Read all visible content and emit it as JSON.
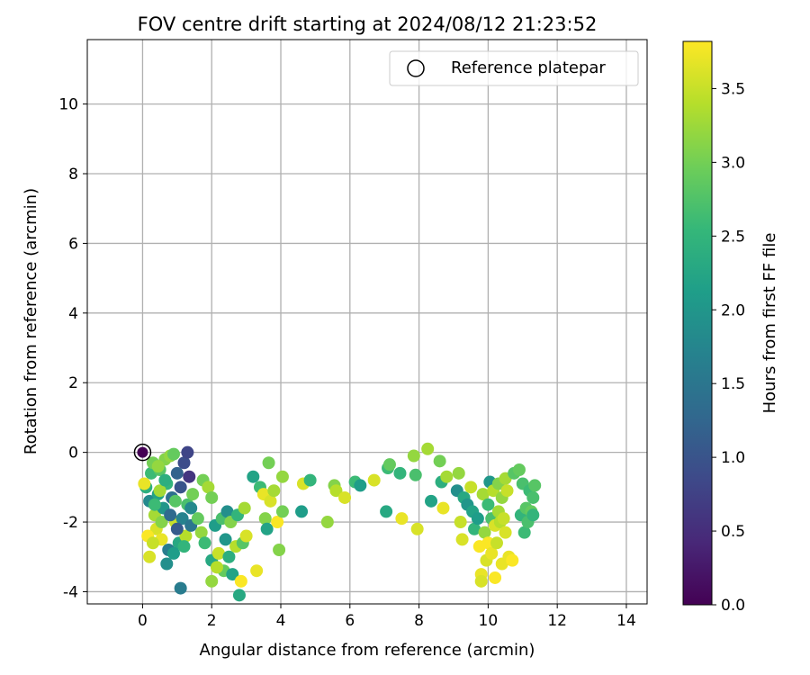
{
  "chart_data": {
    "type": "scatter",
    "title": "FOV centre drift starting at 2024/08/12 21:23:52",
    "xlabel": "Angular distance from reference (arcmin)",
    "ylabel": "Rotation from reference (arcmin)",
    "xlim": [
      -1.6,
      14.6
    ],
    "ylim": [
      -4.35,
      11.85
    ],
    "xticks": [
      "0",
      "2",
      "4",
      "6",
      "8",
      "10",
      "12",
      "14"
    ],
    "yticks": [
      "-4",
      "-2",
      "0",
      "2",
      "4",
      "6",
      "8",
      "10"
    ],
    "grid": true,
    "legend": {
      "position": "top-right",
      "entries": [
        "Reference platepar"
      ]
    },
    "colorbar": {
      "label": "Hours from first FF file",
      "range": [
        0.0,
        3.82
      ],
      "ticks": [
        "0.0",
        "0.5",
        "1.0",
        "1.5",
        "2.0",
        "2.5",
        "3.0",
        "3.5"
      ],
      "colormap": "viridis",
      "colors": [
        "#440154",
        "#482878",
        "#3e4989",
        "#31688e",
        "#26828e",
        "#1f9e89",
        "#35b779",
        "#6ece58",
        "#b5de2b",
        "#fde725"
      ]
    },
    "reference_point": {
      "x": 0,
      "y": 0,
      "hours": 0.0
    },
    "series": [
      {
        "points": [
          {
            "x": 0.1,
            "y": -1.0,
            "c": 2.4
          },
          {
            "x": 0.2,
            "y": -1.4,
            "c": 1.8
          },
          {
            "x": 0.25,
            "y": -0.6,
            "c": 2.6
          },
          {
            "x": 0.3,
            "y": -0.3,
            "c": 3.0
          },
          {
            "x": 0.35,
            "y": -1.8,
            "c": 3.3
          },
          {
            "x": 0.4,
            "y": -2.2,
            "c": 3.6
          },
          {
            "x": 0.45,
            "y": -1.2,
            "c": 2.2
          },
          {
            "x": 0.5,
            "y": -0.5,
            "c": 2.8
          },
          {
            "x": 0.55,
            "y": -2.5,
            "c": 3.7
          },
          {
            "x": 0.6,
            "y": -1.6,
            "c": 2.0
          },
          {
            "x": 0.65,
            "y": -0.2,
            "c": 3.1
          },
          {
            "x": 0.7,
            "y": -0.9,
            "c": 2.5
          },
          {
            "x": 0.75,
            "y": -2.8,
            "c": 1.6
          },
          {
            "x": 0.8,
            "y": -0.1,
            "c": 3.2
          },
          {
            "x": 0.85,
            "y": -1.3,
            "c": 1.4
          },
          {
            "x": 0.9,
            "y": -0.05,
            "c": 2.9
          },
          {
            "x": 0.95,
            "y": -2.0,
            "c": 3.5
          },
          {
            "x": 1.0,
            "y": -0.6,
            "c": 1.2
          },
          {
            "x": 1.05,
            "y": -2.6,
            "c": 2.3
          },
          {
            "x": 1.1,
            "y": -1.0,
            "c": 1.0
          },
          {
            "x": 1.15,
            "y": -1.9,
            "c": 1.7
          },
          {
            "x": 1.2,
            "y": -0.3,
            "c": 0.9
          },
          {
            "x": 1.25,
            "y": -2.4,
            "c": 3.4
          },
          {
            "x": 1.3,
            "y": -1.5,
            "c": 2.7
          },
          {
            "x": 1.35,
            "y": -0.7,
            "c": 0.6
          },
          {
            "x": 1.3,
            "y": 0.0,
            "c": 0.8
          },
          {
            "x": 1.4,
            "y": -2.1,
            "c": 1.5
          },
          {
            "x": 1.45,
            "y": -1.2,
            "c": 3.0
          },
          {
            "x": 0.2,
            "y": -3.0,
            "c": 3.6
          },
          {
            "x": 0.7,
            "y": -3.2,
            "c": 1.9
          },
          {
            "x": 1.1,
            "y": -3.9,
            "c": 1.6
          },
          {
            "x": 0.9,
            "y": -2.9,
            "c": 2.1
          },
          {
            "x": 0.15,
            "y": -2.4,
            "c": 3.8
          },
          {
            "x": 0.5,
            "y": -1.1,
            "c": 3.3
          },
          {
            "x": 0.35,
            "y": -1.5,
            "c": 2.6
          },
          {
            "x": 0.55,
            "y": -2.0,
            "c": 3.1
          },
          {
            "x": 0.8,
            "y": -1.8,
            "c": 1.3
          },
          {
            "x": 1.0,
            "y": -2.2,
            "c": 1.1
          },
          {
            "x": 0.65,
            "y": -0.8,
            "c": 2.4
          },
          {
            "x": 0.3,
            "y": -2.6,
            "c": 3.5
          },
          {
            "x": 1.2,
            "y": -2.7,
            "c": 2.5
          },
          {
            "x": 1.4,
            "y": -1.6,
            "c": 1.8
          },
          {
            "x": 0.05,
            "y": -0.9,
            "c": 3.7
          },
          {
            "x": 0.95,
            "y": -1.4,
            "c": 2.8
          },
          {
            "x": 0.45,
            "y": -0.4,
            "c": 3.2
          },
          {
            "x": 1.6,
            "y": -1.9,
            "c": 2.9
          },
          {
            "x": 1.7,
            "y": -2.3,
            "c": 3.2
          },
          {
            "x": 1.75,
            "y": -0.8,
            "c": 3.0
          },
          {
            "x": 1.8,
            "y": -2.6,
            "c": 2.6
          },
          {
            "x": 1.9,
            "y": -1.0,
            "c": 3.3
          },
          {
            "x": 2.0,
            "y": -3.1,
            "c": 2.3
          },
          {
            "x": 2.0,
            "y": -1.3,
            "c": 3.0
          },
          {
            "x": 2.1,
            "y": -2.1,
            "c": 2.1
          },
          {
            "x": 2.2,
            "y": -2.9,
            "c": 3.5
          },
          {
            "x": 2.3,
            "y": -1.9,
            "c": 2.7
          },
          {
            "x": 2.35,
            "y": -3.4,
            "c": 2.9
          },
          {
            "x": 2.4,
            "y": -2.5,
            "c": 2.0
          },
          {
            "x": 2.45,
            "y": -1.7,
            "c": 1.9
          },
          {
            "x": 2.5,
            "y": -3.0,
            "c": 2.4
          },
          {
            "x": 2.55,
            "y": -2.0,
            "c": 3.1
          },
          {
            "x": 2.6,
            "y": -3.5,
            "c": 2.2
          },
          {
            "x": 2.7,
            "y": -2.7,
            "c": 3.4
          },
          {
            "x": 2.75,
            "y": -1.8,
            "c": 2.5
          },
          {
            "x": 2.8,
            "y": -4.1,
            "c": 2.3
          },
          {
            "x": 2.85,
            "y": -3.7,
            "c": 3.8
          },
          {
            "x": 2.9,
            "y": -2.6,
            "c": 2.8
          },
          {
            "x": 2.95,
            "y": -1.6,
            "c": 3.3
          },
          {
            "x": 3.0,
            "y": -2.4,
            "c": 3.6
          },
          {
            "x": 2.0,
            "y": -3.7,
            "c": 3.2
          },
          {
            "x": 2.15,
            "y": -3.3,
            "c": 3.4
          },
          {
            "x": 3.2,
            "y": -0.7,
            "c": 2.2
          },
          {
            "x": 3.3,
            "y": -3.4,
            "c": 3.7
          },
          {
            "x": 3.4,
            "y": -1.0,
            "c": 2.6
          },
          {
            "x": 3.5,
            "y": -1.2,
            "c": 3.7
          },
          {
            "x": 3.55,
            "y": -1.9,
            "c": 3.1
          },
          {
            "x": 3.6,
            "y": -2.2,
            "c": 2.2
          },
          {
            "x": 3.65,
            "y": -0.3,
            "c": 3.0
          },
          {
            "x": 3.7,
            "y": -1.4,
            "c": 3.6
          },
          {
            "x": 3.8,
            "y": -1.1,
            "c": 3.3
          },
          {
            "x": 3.9,
            "y": -2.0,
            "c": 3.8
          },
          {
            "x": 3.95,
            "y": -2.8,
            "c": 3.1
          },
          {
            "x": 4.05,
            "y": -0.7,
            "c": 3.2
          },
          {
            "x": 4.05,
            "y": -1.7,
            "c": 3.0
          },
          {
            "x": 4.6,
            "y": -1.7,
            "c": 2.1
          },
          {
            "x": 4.65,
            "y": -0.9,
            "c": 3.6
          },
          {
            "x": 4.85,
            "y": -0.8,
            "c": 2.5
          },
          {
            "x": 5.35,
            "y": -2.0,
            "c": 3.2
          },
          {
            "x": 5.55,
            "y": -0.95,
            "c": 3.1
          },
          {
            "x": 5.6,
            "y": -1.1,
            "c": 3.4
          },
          {
            "x": 5.85,
            "y": -1.3,
            "c": 3.6
          },
          {
            "x": 6.15,
            "y": -0.85,
            "c": 2.6
          },
          {
            "x": 6.3,
            "y": -0.95,
            "c": 2.1
          },
          {
            "x": 6.7,
            "y": -0.8,
            "c": 3.6
          },
          {
            "x": 7.05,
            "y": -1.7,
            "c": 2.3
          },
          {
            "x": 7.1,
            "y": -0.45,
            "c": 2.6
          },
          {
            "x": 7.15,
            "y": -0.35,
            "c": 2.9
          },
          {
            "x": 7.45,
            "y": -0.6,
            "c": 2.5
          },
          {
            "x": 7.5,
            "y": -1.9,
            "c": 3.7
          },
          {
            "x": 7.85,
            "y": -0.1,
            "c": 3.2
          },
          {
            "x": 7.9,
            "y": -0.65,
            "c": 2.7
          },
          {
            "x": 7.95,
            "y": -2.2,
            "c": 3.6
          },
          {
            "x": 8.25,
            "y": 0.1,
            "c": 3.3
          },
          {
            "x": 8.35,
            "y": -1.4,
            "c": 2.2
          },
          {
            "x": 8.6,
            "y": -0.25,
            "c": 3.0
          },
          {
            "x": 8.65,
            "y": -0.85,
            "c": 2.4
          },
          {
            "x": 8.7,
            "y": -1.6,
            "c": 3.7
          },
          {
            "x": 8.8,
            "y": -0.7,
            "c": 3.3
          },
          {
            "x": 9.1,
            "y": -1.1,
            "c": 1.9
          },
          {
            "x": 9.15,
            "y": -0.6,
            "c": 3.2
          },
          {
            "x": 9.2,
            "y": -2.0,
            "c": 3.5
          },
          {
            "x": 9.25,
            "y": -2.5,
            "c": 3.6
          },
          {
            "x": 9.3,
            "y": -1.3,
            "c": 2.3
          },
          {
            "x": 9.4,
            "y": -1.5,
            "c": 2.0
          },
          {
            "x": 9.5,
            "y": -1.0,
            "c": 3.5
          },
          {
            "x": 9.55,
            "y": -1.7,
            "c": 2.2
          },
          {
            "x": 9.6,
            "y": -2.2,
            "c": 2.5
          },
          {
            "x": 9.7,
            "y": -1.9,
            "c": 2.1
          },
          {
            "x": 9.75,
            "y": -2.7,
            "c": 3.8
          },
          {
            "x": 9.8,
            "y": -3.5,
            "c": 3.7
          },
          {
            "x": 9.8,
            "y": -3.7,
            "c": 3.6
          },
          {
            "x": 9.85,
            "y": -1.2,
            "c": 3.3
          },
          {
            "x": 9.9,
            "y": -2.3,
            "c": 3.2
          },
          {
            "x": 9.95,
            "y": -3.1,
            "c": 3.6
          },
          {
            "x": 10.0,
            "y": -1.5,
            "c": 2.6
          },
          {
            "x": 10.0,
            "y": -2.6,
            "c": 3.8
          },
          {
            "x": 10.05,
            "y": -0.85,
            "c": 2.0
          },
          {
            "x": 10.1,
            "y": -1.9,
            "c": 2.7
          },
          {
            "x": 10.1,
            "y": -2.9,
            "c": 3.7
          },
          {
            "x": 10.15,
            "y": -1.1,
            "c": 3.4
          },
          {
            "x": 10.2,
            "y": -2.1,
            "c": 3.6
          },
          {
            "x": 10.2,
            "y": -3.6,
            "c": 3.8
          },
          {
            "x": 10.25,
            "y": -2.6,
            "c": 3.5
          },
          {
            "x": 10.3,
            "y": -1.7,
            "c": 3.3
          },
          {
            "x": 10.3,
            "y": -0.9,
            "c": 3.1
          },
          {
            "x": 10.35,
            "y": -2.0,
            "c": 3.4
          },
          {
            "x": 10.4,
            "y": -1.3,
            "c": 3.2
          },
          {
            "x": 10.4,
            "y": -3.2,
            "c": 3.7
          },
          {
            "x": 10.45,
            "y": -1.9,
            "c": 3.5
          },
          {
            "x": 10.5,
            "y": -0.75,
            "c": 3.3
          },
          {
            "x": 10.5,
            "y": -2.3,
            "c": 3.6
          },
          {
            "x": 10.55,
            "y": -1.1,
            "c": 3.5
          },
          {
            "x": 10.6,
            "y": -3.0,
            "c": 3.7
          },
          {
            "x": 10.7,
            "y": -3.1,
            "c": 3.8
          },
          {
            "x": 10.75,
            "y": -0.6,
            "c": 2.8
          },
          {
            "x": 10.9,
            "y": -0.5,
            "c": 2.9
          },
          {
            "x": 10.95,
            "y": -1.8,
            "c": 2.5
          },
          {
            "x": 11.0,
            "y": -0.9,
            "c": 2.7
          },
          {
            "x": 11.05,
            "y": -2.3,
            "c": 2.6
          },
          {
            "x": 11.1,
            "y": -1.6,
            "c": 2.8
          },
          {
            "x": 11.15,
            "y": -2.0,
            "c": 2.7
          },
          {
            "x": 11.2,
            "y": -1.1,
            "c": 2.6
          },
          {
            "x": 11.25,
            "y": -1.7,
            "c": 2.9
          },
          {
            "x": 11.3,
            "y": -1.3,
            "c": 2.7
          },
          {
            "x": 11.35,
            "y": -0.95,
            "c": 2.8
          },
          {
            "x": 11.3,
            "y": -1.8,
            "c": 2.5
          }
        ]
      }
    ]
  }
}
